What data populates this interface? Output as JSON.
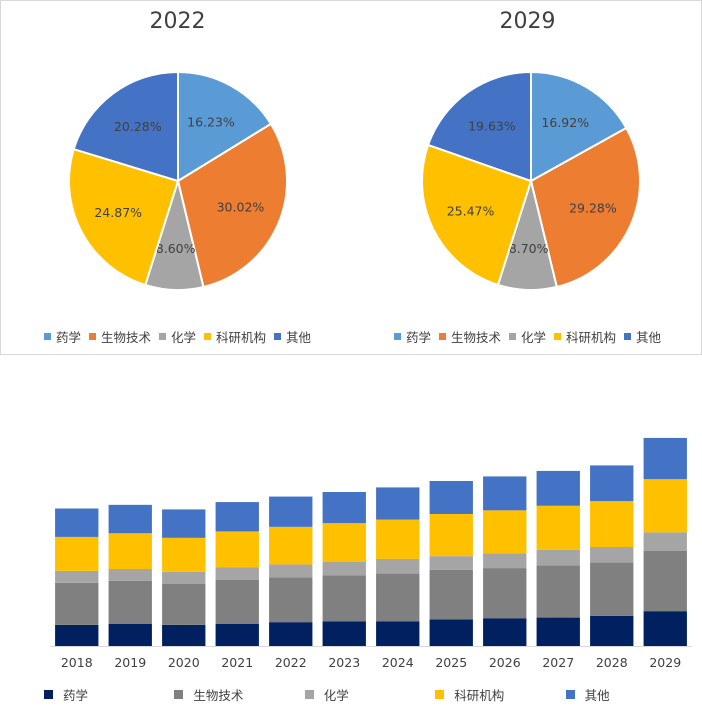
{
  "chart_data": [
    {
      "type": "pie",
      "title": "2022",
      "categories": [
        "药学",
        "生物技术",
        "化学",
        "科研机构",
        "其他"
      ],
      "values": [
        16.23,
        30.02,
        8.6,
        24.87,
        20.28
      ],
      "labels": [
        "16.23%",
        "30.02%",
        "8.60%",
        "24.87%",
        "20.28%"
      ],
      "colors": [
        "#5b9bd5",
        "#ed7d31",
        "#a5a5a5",
        "#ffc000",
        "#4472c4"
      ],
      "legend": "bottom"
    },
    {
      "type": "pie",
      "title": "2029",
      "categories": [
        "药学",
        "生物技术",
        "化学",
        "科研机构",
        "其他"
      ],
      "values": [
        16.92,
        29.28,
        8.7,
        25.47,
        19.63
      ],
      "labels": [
        "16.92%",
        "29.28%",
        "8.70%",
        "25.47%",
        "19.63%"
      ],
      "colors": [
        "#5b9bd5",
        "#ed7d31",
        "#a5a5a5",
        "#ffc000",
        "#4472c4"
      ],
      "legend": "bottom"
    },
    {
      "type": "bar",
      "stacked": true,
      "categories": [
        "2018",
        "2019",
        "2020",
        "2021",
        "2022",
        "2023",
        "2024",
        "2025",
        "2026",
        "2027",
        "2028",
        "2029"
      ],
      "series": [
        {
          "name": "药学",
          "color": "#002060",
          "values": [
            23,
            24,
            23,
            24,
            26,
            27,
            27,
            29,
            30,
            31,
            33,
            38
          ]
        },
        {
          "name": "生物技术",
          "color": "#808080",
          "values": [
            46,
            47,
            45,
            48,
            49,
            50,
            52,
            54,
            55,
            57,
            58,
            66
          ]
        },
        {
          "name": "化学",
          "color": "#a5a5a5",
          "values": [
            13,
            13,
            13,
            14,
            14,
            15,
            16,
            15,
            16,
            17,
            17,
            20
          ]
        },
        {
          "name": "科研机构",
          "color": "#ffc000",
          "values": [
            37,
            39,
            37,
            39,
            41,
            42,
            43,
            46,
            47,
            48,
            50,
            58
          ]
        },
        {
          "name": "其他",
          "color": "#4472c4",
          "values": [
            31,
            31,
            31,
            32,
            33,
            34,
            35,
            36,
            37,
            38,
            39,
            45
          ]
        }
      ],
      "legend": "bottom",
      "ylim": [
        0,
        240
      ],
      "grid": false,
      "yaxis_visible": false
    }
  ]
}
